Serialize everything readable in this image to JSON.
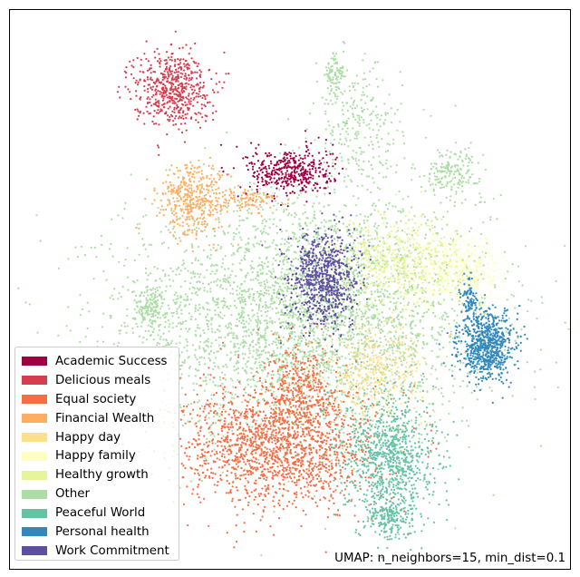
{
  "chart_data": {
    "type": "scatter",
    "xlabel": "",
    "ylabel": "",
    "axes_ticks": "none",
    "grid": false,
    "legend_placement": "lower-left",
    "annotation": "UMAP: n_neighbors=15, min_dist=0.1",
    "xlim": [
      0,
      100
    ],
    "ylim": [
      0,
      100
    ],
    "series": [
      {
        "name": "Academic Success",
        "color": "#9e0142",
        "clusters": [
          {
            "x": 50,
            "y": 71,
            "sx": 3.8,
            "sy": 2.2,
            "n": 420
          }
        ]
      },
      {
        "name": "Delicious meals",
        "color": "#d53e4f",
        "clusters": [
          {
            "x": 29,
            "y": 86,
            "sx": 3.4,
            "sy": 3.4,
            "n": 560
          }
        ]
      },
      {
        "name": "Equal society",
        "color": "#f46d43",
        "clusters": [
          {
            "x": 48,
            "y": 22,
            "sx": 8.5,
            "sy": 5.5,
            "n": 1600
          },
          {
            "name": "tail",
            "x": 52,
            "y": 33,
            "sx": 3.2,
            "sy": 4.0,
            "n": 320
          }
        ]
      },
      {
        "name": "Financial Wealth",
        "color": "#fdae61",
        "clusters": [
          {
            "x": 33,
            "y": 66,
            "sx": 3.2,
            "sy": 3.2,
            "n": 420
          },
          {
            "name": "tail",
            "x": 43,
            "y": 66,
            "sx": 2.5,
            "sy": 1.0,
            "n": 90
          }
        ]
      },
      {
        "name": "Happy day",
        "color": "#fee08b",
        "clusters": [
          {
            "x": 65,
            "y": 35,
            "sx": 4.2,
            "sy": 4.0,
            "n": 380
          }
        ]
      },
      {
        "name": "Happy family",
        "color": "#ffffbf",
        "clusters": [
          {
            "x": 80,
            "y": 53,
            "sx": 4.2,
            "sy": 3.2,
            "n": 420
          }
        ]
      },
      {
        "name": "Healthy growth",
        "color": "#e6f598",
        "clusters": [
          {
            "x": 69,
            "y": 55,
            "sx": 5.5,
            "sy": 3.8,
            "n": 520
          }
        ]
      },
      {
        "name": "Other",
        "color": "#abdda4",
        "clusters": [
          {
            "x": 53,
            "y": 45,
            "sx": 16,
            "sy": 11,
            "n": 3800
          },
          {
            "name": "top-islands",
            "x": 62,
            "y": 79,
            "sx": 4.0,
            "sy": 5.5,
            "n": 260
          },
          {
            "name": "far-island",
            "x": 58,
            "y": 88,
            "sx": 0.9,
            "sy": 2.2,
            "n": 90
          },
          {
            "name": "left-island",
            "x": 25,
            "y": 47,
            "sx": 1.5,
            "sy": 1.8,
            "n": 160
          },
          {
            "name": "right-islands",
            "x": 79,
            "y": 71,
            "sx": 2.5,
            "sy": 2.0,
            "n": 180
          }
        ]
      },
      {
        "name": "Peaceful World",
        "color": "#66c2a5",
        "clusters": [
          {
            "x": 68,
            "y": 20,
            "sx": 4.0,
            "sy": 5.8,
            "n": 900
          },
          {
            "name": "tail",
            "x": 68,
            "y": 9,
            "sx": 2.2,
            "sy": 1.8,
            "n": 170
          }
        ]
      },
      {
        "name": "Personal health",
        "color": "#3288bd",
        "clusters": [
          {
            "x": 85,
            "y": 40,
            "sx": 2.4,
            "sy": 3.0,
            "n": 720
          },
          {
            "name": "neck",
            "x": 82,
            "y": 48,
            "sx": 0.8,
            "sy": 1.8,
            "n": 90
          }
        ]
      },
      {
        "name": "Work Commitment",
        "color": "#5e4fa2",
        "clusters": [
          {
            "x": 56,
            "y": 52,
            "sx": 3.0,
            "sy": 4.2,
            "n": 760
          }
        ]
      }
    ]
  }
}
